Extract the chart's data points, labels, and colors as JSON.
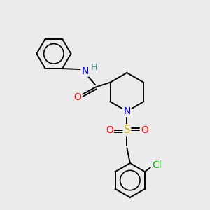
{
  "bg_color": "#ebebeb",
  "atom_colors": {
    "N": "#0000ff",
    "O": "#ff0000",
    "S": "#ccaa00",
    "Cl": "#00bb00",
    "C": "#000000",
    "H": "#4a9090"
  },
  "bond_color": "#000000",
  "lw": 1.4
}
